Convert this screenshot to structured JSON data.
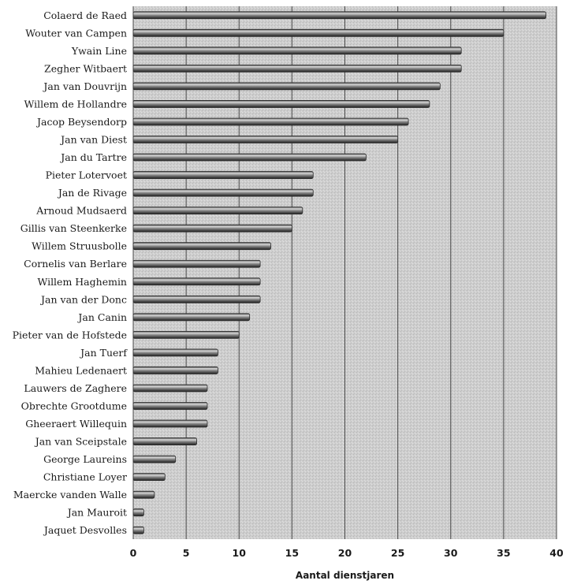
{
  "chart_data": {
    "type": "bar",
    "orientation": "horizontal",
    "categories": [
      "Colaerd de Raed",
      "Wouter van Campen",
      "Ywain Line",
      "Zegher Witbaert",
      "Jan van Douvrijn",
      "Willem de Hollandre",
      "Jacop Beysendorp",
      "Jan van Diest",
      "Jan du Tartre",
      "Pieter Lotervoet",
      "Jan de Rivage",
      "Arnoud Mudsaerd",
      "Gillis van Steenkerke",
      "Willem Struusbolle",
      "Cornelis van Berlare",
      "Willem Haghemin",
      "Jan van der Donc",
      "Jan Canin",
      "Pieter van de Hofstede",
      "Jan Tuerf",
      "Mahieu Ledenaert",
      "Lauwers de Zaghere",
      "Obrechte Grootdume",
      "Gheeraert Willequin",
      "Jan van Sceipstale",
      "George Laureins",
      "Christiane Loyer",
      "Maercke vanden Walle",
      "Jan Mauroit",
      "Jaquet Desvolles"
    ],
    "values": [
      39,
      35,
      31,
      31,
      29,
      28,
      26,
      25,
      22,
      17,
      17,
      16,
      15,
      13,
      12,
      12,
      12,
      11,
      10,
      8,
      8,
      7,
      7,
      7,
      6,
      4,
      3,
      2,
      1,
      1
    ],
    "xlabel": "Aantal dienstjaren",
    "ylabel": "",
    "title": "",
    "xlim": [
      0,
      40
    ],
    "x_ticks": [
      "0",
      "5",
      "10",
      "15",
      "20",
      "25",
      "30",
      "35",
      "40"
    ],
    "grid": "vertical",
    "colors": {
      "bar_dark": "#2a2a2a",
      "bar_mid": "#7a7a7a",
      "bar_light": "#d4d4d4",
      "plot_bg": "#c9c9c9",
      "gridline": "#4a4a4a"
    }
  }
}
